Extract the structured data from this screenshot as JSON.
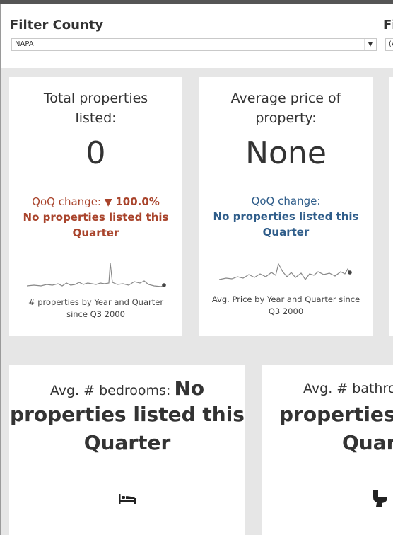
{
  "filters": [
    {
      "title": "Filter County",
      "value": "NAPA"
    },
    {
      "title": "Fi",
      "value": "(A"
    }
  ],
  "cards": {
    "total_properties": {
      "title_line1": "Total properties",
      "title_line2": "listed:",
      "value": "0",
      "qoq_label": "QoQ change:",
      "qoq_arrow": "▼",
      "qoq_value": "100.0%",
      "qoq_note_line1": "No properties listed this",
      "qoq_note_line2": "Quarter",
      "caption_line1": "# properties by Year and Quarter",
      "caption_line2": "since Q3 2000",
      "color": "#a9442c"
    },
    "average_price": {
      "title_line1": "Average price of",
      "title_line2": "property:",
      "value": "None",
      "qoq_label": "QoQ change:",
      "qoq_note_line1": "No properties listed this",
      "qoq_note_line2": "Quarter",
      "caption_line1": "Avg. Price by Year and Quarter since",
      "caption_line2": "Q3 2000",
      "color": "#2f5d8a"
    },
    "avg_bedrooms": {
      "label": "Avg. # bedrooms:",
      "line1_bold": "No",
      "line2": "properties listed this",
      "line3": "Quarter",
      "icon": "bed-icon"
    },
    "avg_bathrooms": {
      "label": "Avg. # bathro",
      "line2": "properties l",
      "line3": "Quart",
      "icon": "toilet-icon"
    }
  }
}
